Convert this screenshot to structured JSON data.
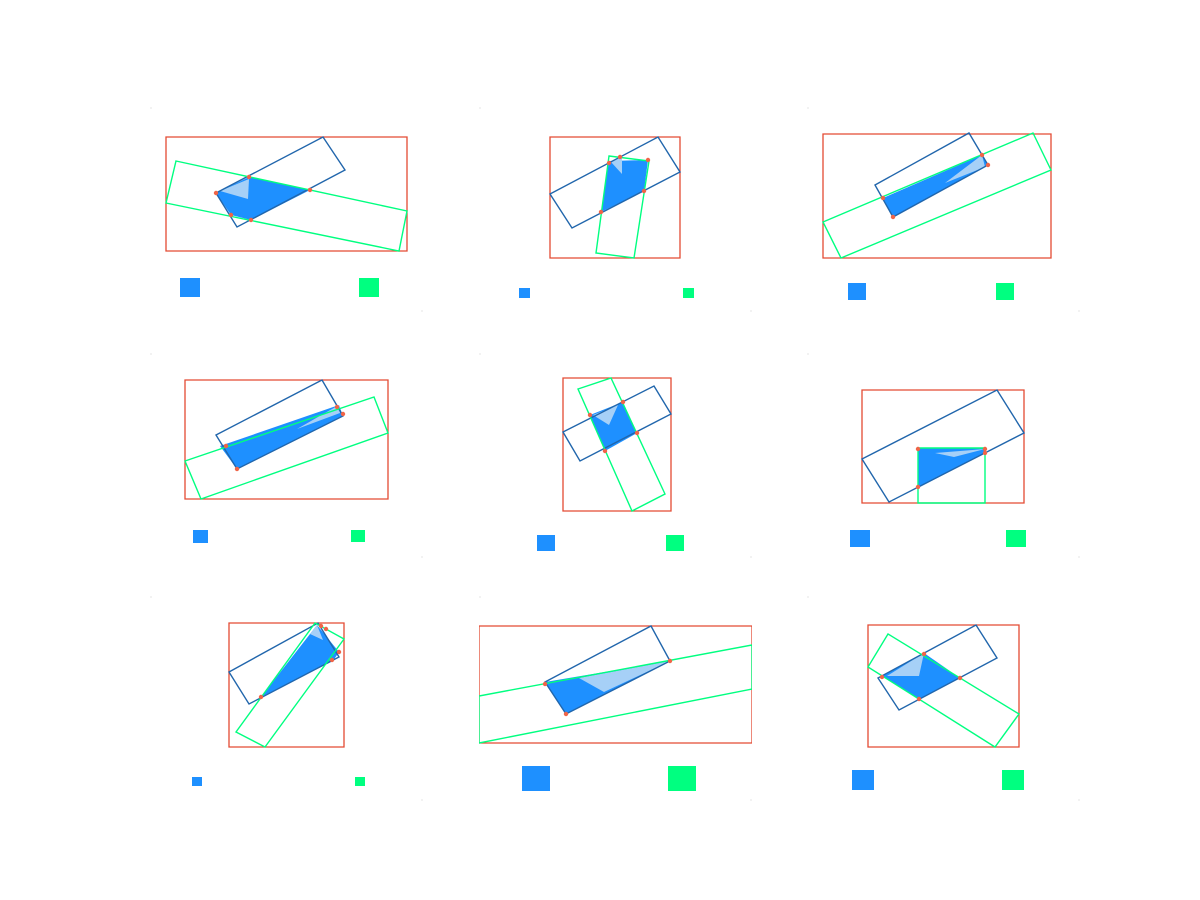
{
  "figure": {
    "colors": {
      "box_a": "#2166ac",
      "box_b": "#00ff80",
      "bounds": "#e34a33",
      "overlap_fill": "#1e90ff",
      "highlight": "#a6d0f7",
      "points": "#ef6548",
      "legend_a": "#1e90ff",
      "legend_b": "#00ff80"
    },
    "panels": [
      {
        "id": "r1c1",
        "bounds": [
          [
            16,
            30
          ],
          [
            257,
            30
          ],
          [
            257,
            144
          ],
          [
            16,
            144
          ]
        ],
        "box_a": [
          [
            66,
            86
          ],
          [
            173,
            30
          ],
          [
            195,
            63
          ],
          [
            87,
            120
          ]
        ],
        "box_b": [
          [
            26,
            54
          ],
          [
            257,
            104
          ],
          [
            249,
            144
          ],
          [
            16,
            96
          ]
        ],
        "overlap": [
          [
            66,
            86
          ],
          [
            99,
            70
          ],
          [
            160,
            83
          ],
          [
            101,
            113
          ],
          [
            81,
            108
          ]
        ],
        "highlight": [
          [
            70,
            84
          ],
          [
            99,
            72
          ],
          [
            98,
            92
          ]
        ],
        "points": [
          [
            66,
            86
          ],
          [
            99,
            70
          ],
          [
            160,
            83
          ],
          [
            101,
            113
          ],
          [
            81,
            108
          ]
        ],
        "legend_a": [
          30,
          171,
          20,
          19
        ],
        "legend_b": [
          209,
          171,
          20,
          19
        ]
      },
      {
        "id": "r1c2",
        "bounds": [
          [
            71,
            30
          ],
          [
            201,
            30
          ],
          [
            201,
            151
          ],
          [
            71,
            151
          ]
        ],
        "box_a": [
          [
            71,
            87
          ],
          [
            179,
            30
          ],
          [
            201,
            65
          ],
          [
            93,
            121
          ]
        ],
        "box_b": [
          [
            130,
            49
          ],
          [
            170,
            54
          ],
          [
            155,
            151
          ],
          [
            117,
            146
          ]
        ],
        "overlap": [
          [
            130,
            54
          ],
          [
            169,
            53
          ],
          [
            165,
            84
          ],
          [
            122,
            105
          ]
        ],
        "highlight": [
          [
            132,
            55
          ],
          [
            143,
            50
          ],
          [
            143,
            67
          ]
        ],
        "points": [
          [
            130,
            56
          ],
          [
            141,
            50
          ],
          [
            169,
            53
          ],
          [
            165,
            84
          ],
          [
            122,
            105
          ]
        ],
        "legend_a": [
          40,
          181,
          11,
          10
        ],
        "legend_b": [
          204,
          181,
          11,
          10
        ]
      },
      {
        "id": "r1c3",
        "bounds": [
          [
            16,
            27
          ],
          [
            244,
            27
          ],
          [
            244,
            151
          ],
          [
            16,
            151
          ]
        ],
        "box_a": [
          [
            68,
            78
          ],
          [
            162,
            26
          ],
          [
            181,
            58
          ],
          [
            86,
            110
          ]
        ],
        "box_b": [
          [
            16,
            115
          ],
          [
            226,
            26
          ],
          [
            244,
            63
          ],
          [
            34,
            151
          ]
        ],
        "overlap": [
          [
            76,
            91
          ],
          [
            175,
            48
          ],
          [
            181,
            58
          ],
          [
            86,
            110
          ]
        ],
        "highlight": [
          [
            138,
            76
          ],
          [
            175,
            48
          ],
          [
            178,
            60
          ]
        ],
        "points": [
          [
            76,
            91
          ],
          [
            175,
            48
          ],
          [
            181,
            58
          ],
          [
            86,
            110
          ]
        ],
        "legend_a": [
          41,
          176,
          18,
          17
        ],
        "legend_b": [
          189,
          176,
          18,
          17
        ]
      },
      {
        "id": "r2c1",
        "bounds": [
          [
            35,
            27
          ],
          [
            238,
            27
          ],
          [
            238,
            146
          ],
          [
            35,
            146
          ]
        ],
        "box_a": [
          [
            66,
            82
          ],
          [
            172,
            27
          ],
          [
            193,
            63
          ],
          [
            87,
            116
          ]
        ],
        "box_b": [
          [
            35,
            108
          ],
          [
            224,
            44
          ],
          [
            238,
            80
          ],
          [
            51,
            146
          ]
        ],
        "overlap": [
          [
            70,
            93
          ],
          [
            189,
            52
          ],
          [
            193,
            63
          ],
          [
            87,
            116
          ]
        ],
        "highlight": [
          [
            147,
            76
          ],
          [
            189,
            52
          ],
          [
            190,
            60
          ]
        ],
        "points": [
          [
            76,
            93
          ],
          [
            187,
            54
          ],
          [
            193,
            61
          ],
          [
            87,
            116
          ]
        ],
        "legend_a": [
          43,
          177,
          15,
          13
        ],
        "legend_b": [
          201,
          177,
          14,
          12
        ]
      },
      {
        "id": "r2c2",
        "bounds": [
          [
            84,
            25
          ],
          [
            192,
            25
          ],
          [
            192,
            158
          ],
          [
            84,
            158
          ]
        ],
        "box_a": [
          [
            84,
            79
          ],
          [
            175,
            33
          ],
          [
            192,
            61
          ],
          [
            101,
            108
          ]
        ],
        "box_b": [
          [
            99,
            36
          ],
          [
            132,
            25
          ],
          [
            186,
            141
          ],
          [
            153,
            158
          ]
        ],
        "overlap": [
          [
            111,
            62
          ],
          [
            144,
            49
          ],
          [
            158,
            80
          ],
          [
            126,
            98
          ]
        ],
        "highlight": [
          [
            114,
            62
          ],
          [
            139,
            52
          ],
          [
            130,
            72
          ]
        ],
        "points": [
          [
            111,
            62
          ],
          [
            144,
            49
          ],
          [
            158,
            80
          ],
          [
            126,
            98
          ]
        ],
        "legend_a": [
          58,
          182,
          18,
          16
        ],
        "legend_b": [
          187,
          182,
          18,
          16
        ]
      },
      {
        "id": "r2c3",
        "bounds": [
          [
            55,
            37
          ],
          [
            217,
            37
          ],
          [
            217,
            150
          ],
          [
            55,
            150
          ]
        ],
        "box_a": [
          [
            55,
            106
          ],
          [
            190,
            37
          ],
          [
            217,
            80
          ],
          [
            82,
            149
          ]
        ],
        "box_b": [
          [
            111,
            95
          ],
          [
            178,
            95
          ],
          [
            178,
            150
          ],
          [
            111,
            150
          ]
        ],
        "overlap": [
          [
            111,
            95
          ],
          [
            178,
            95
          ],
          [
            178,
            100
          ],
          [
            111,
            135
          ]
        ],
        "highlight": [
          [
            128,
            100
          ],
          [
            178,
            96
          ],
          [
            147,
            104
          ]
        ],
        "points": [
          [
            111,
            96
          ],
          [
            178,
            96
          ],
          [
            178,
            100
          ],
          [
            111,
            134
          ]
        ],
        "legend_a": [
          43,
          177,
          20,
          17
        ],
        "legend_b": [
          199,
          177,
          20,
          17
        ]
      },
      {
        "id": "r3c1",
        "bounds": [
          [
            79,
            27
          ],
          [
            194,
            27
          ],
          [
            194,
            151
          ],
          [
            79,
            151
          ]
        ],
        "box_a": [
          [
            79,
            76
          ],
          [
            168,
            27
          ],
          [
            189,
            61
          ],
          [
            99,
            108
          ]
        ],
        "box_b": [
          [
            165,
            27
          ],
          [
            194,
            43
          ],
          [
            115,
            151
          ],
          [
            86,
            136
          ]
        ],
        "overlap": [
          [
            111,
            101
          ],
          [
            167,
            29
          ],
          [
            189,
            56
          ],
          [
            183,
            65
          ]
        ],
        "highlight": [
          [
            160,
            38
          ],
          [
            167,
            29
          ],
          [
            173,
            44
          ]
        ],
        "points": [
          [
            111,
            101
          ],
          [
            171,
            30
          ],
          [
            176,
            33
          ],
          [
            189,
            56
          ],
          [
            182,
            64
          ]
        ],
        "legend_a": [
          42,
          181,
          10,
          9
        ],
        "legend_b": [
          205,
          181,
          10,
          9
        ]
      },
      {
        "id": "r3c2",
        "bounds": [
          [
            0,
            30
          ],
          [
            273,
            30
          ],
          [
            273,
            147
          ],
          [
            0,
            147
          ]
        ],
        "box_a": [
          [
            66,
            86
          ],
          [
            172,
            30
          ],
          [
            191,
            65
          ],
          [
            87,
            118
          ]
        ],
        "box_b": [
          [
            0,
            100
          ],
          [
            273,
            49
          ],
          [
            273,
            93
          ],
          [
            0,
            147
          ]
        ],
        "overlap": [
          [
            66,
            86
          ],
          [
            191,
            65
          ],
          [
            87,
            118
          ]
        ],
        "highlight": [
          [
            100,
            82
          ],
          [
            191,
            65
          ],
          [
            125,
            96
          ]
        ],
        "points": [
          [
            66,
            88
          ],
          [
            191,
            65
          ],
          [
            87,
            118
          ]
        ],
        "legend_a": [
          43,
          170,
          28,
          25
        ],
        "legend_b": [
          189,
          170,
          28,
          25
        ]
      },
      {
        "id": "r3c3",
        "bounds": [
          [
            61,
            29
          ],
          [
            212,
            29
          ],
          [
            212,
            151
          ],
          [
            61,
            151
          ]
        ],
        "box_a": [
          [
            71,
            82
          ],
          [
            169,
            29
          ],
          [
            190,
            62
          ],
          [
            92,
            114
          ]
        ],
        "box_b": [
          [
            81,
            38
          ],
          [
            212,
            118
          ],
          [
            188,
            151
          ],
          [
            61,
            71
          ]
        ],
        "overlap": [
          [
            75,
            80
          ],
          [
            117,
            57
          ],
          [
            153,
            82
          ],
          [
            112,
            103
          ]
        ],
        "highlight": [
          [
            80,
            80
          ],
          [
            117,
            57
          ],
          [
            112,
            80
          ]
        ],
        "points": [
          [
            75,
            81
          ],
          [
            117,
            58
          ],
          [
            153,
            82
          ],
          [
            112,
            103
          ]
        ],
        "legend_a": [
          45,
          174,
          22,
          20
        ],
        "legend_b": [
          195,
          174,
          22,
          20
        ]
      }
    ]
  }
}
